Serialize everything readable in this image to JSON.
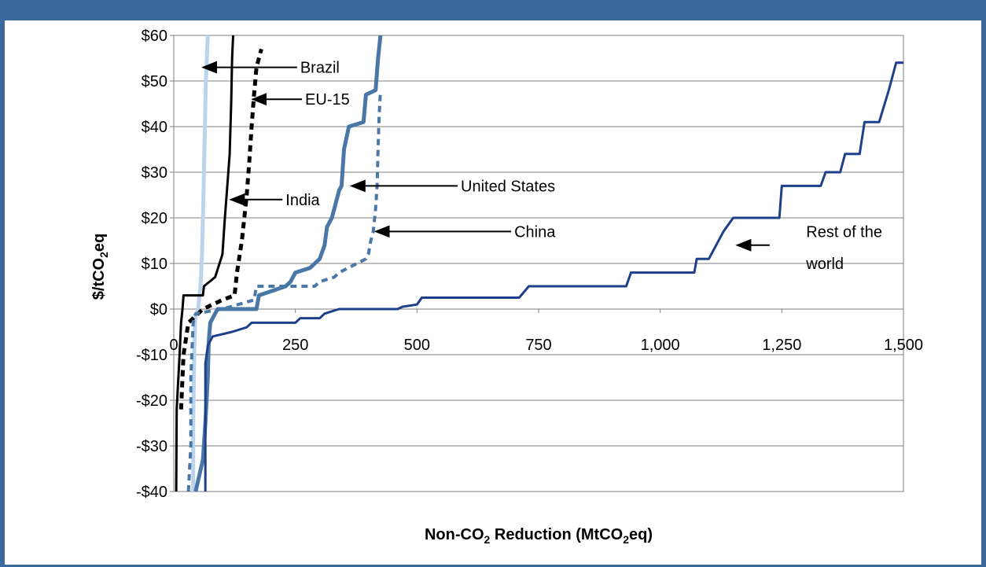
{
  "colors": {
    "frame": "#3b679a",
    "brazil": "#bcd3ec",
    "india": "#000000",
    "eu15": "#000000",
    "united_states": "#4a78a6",
    "china": "#4a78a6",
    "rest_of_world": "#1e3f8a"
  },
  "chart_data": {
    "type": "line",
    "xlabel": {
      "pre": "Non-CO",
      "sub": "2",
      "post": " Reduction (MtCO",
      "sub2": "2",
      "post2": "eq)"
    },
    "ylabel": {
      "pre": "$/tCO",
      "sub": "2",
      "post": "eq"
    },
    "xlim": [
      0,
      1500
    ],
    "ylim": [
      -40,
      60
    ],
    "x_ticks": [
      {
        "value": 0,
        "label": "0"
      },
      {
        "value": 250,
        "label": "250"
      },
      {
        "value": 500,
        "label": "500"
      },
      {
        "value": 750,
        "label": "750"
      },
      {
        "value": 1000,
        "label": "1,000"
      },
      {
        "value": 1250,
        "label": "1,250"
      },
      {
        "value": 1500,
        "label": "1,500"
      }
    ],
    "y_ticks": [
      {
        "value": 60,
        "label": "$60"
      },
      {
        "value": 50,
        "label": "$50"
      },
      {
        "value": 40,
        "label": "$40"
      },
      {
        "value": 30,
        "label": "$30"
      },
      {
        "value": 20,
        "label": "$20"
      },
      {
        "value": 10,
        "label": "$10"
      },
      {
        "value": 0,
        "label": "$0"
      },
      {
        "value": -10,
        "label": "-$10"
      },
      {
        "value": -20,
        "label": "-$20"
      },
      {
        "value": -30,
        "label": "-$30"
      },
      {
        "value": -40,
        "label": "-$40"
      }
    ],
    "grid": "horizontal",
    "series": [
      {
        "name": "Brazil",
        "style": "solid",
        "color_key": "brazil",
        "points": [
          [
            40,
            -40
          ],
          [
            40,
            -25
          ],
          [
            42,
            -10
          ],
          [
            44,
            -2
          ],
          [
            50,
            0
          ],
          [
            55,
            5
          ],
          [
            58,
            12
          ],
          [
            60,
            20
          ],
          [
            62,
            30
          ],
          [
            64,
            40
          ],
          [
            66,
            50
          ],
          [
            70,
            60
          ]
        ]
      },
      {
        "name": "India",
        "style": "solid",
        "color_key": "india",
        "points": [
          [
            5,
            -40
          ],
          [
            6,
            -22
          ],
          [
            12,
            -10
          ],
          [
            15,
            -3
          ],
          [
            18,
            0
          ],
          [
            20,
            3
          ],
          [
            60,
            3
          ],
          [
            62,
            5
          ],
          [
            85,
            7
          ],
          [
            100,
            12
          ],
          [
            105,
            20
          ],
          [
            110,
            27
          ],
          [
            115,
            34
          ],
          [
            118,
            45
          ],
          [
            120,
            55
          ],
          [
            122,
            60
          ]
        ]
      },
      {
        "name": "EU-15",
        "style": "dashed",
        "color_key": "eu15",
        "points": [
          [
            15,
            -22
          ],
          [
            20,
            -10
          ],
          [
            30,
            -3
          ],
          [
            60,
            0
          ],
          [
            100,
            2
          ],
          [
            125,
            3
          ],
          [
            130,
            8
          ],
          [
            140,
            15
          ],
          [
            150,
            25
          ],
          [
            155,
            32
          ],
          [
            160,
            40
          ],
          [
            165,
            47
          ],
          [
            170,
            53
          ],
          [
            180,
            57
          ]
        ]
      },
      {
        "name": "United States",
        "style": "solid",
        "color_key": "united_states",
        "points": [
          [
            45,
            -40
          ],
          [
            60,
            -33
          ],
          [
            65,
            -25
          ],
          [
            70,
            -15
          ],
          [
            72,
            -7
          ],
          [
            75,
            -3
          ],
          [
            90,
            0
          ],
          [
            170,
            0
          ],
          [
            175,
            3
          ],
          [
            230,
            5
          ],
          [
            240,
            6
          ],
          [
            250,
            8
          ],
          [
            280,
            9
          ],
          [
            300,
            11
          ],
          [
            310,
            14
          ],
          [
            315,
            18
          ],
          [
            325,
            20
          ],
          [
            340,
            26
          ],
          [
            345,
            27
          ],
          [
            350,
            35
          ],
          [
            360,
            40
          ],
          [
            390,
            41
          ],
          [
            395,
            47
          ],
          [
            415,
            48
          ],
          [
            420,
            55
          ],
          [
            425,
            60
          ]
        ]
      },
      {
        "name": "China",
        "style": "dashed",
        "color_key": "china",
        "points": [
          [
            30,
            -40
          ],
          [
            35,
            -30
          ],
          [
            35,
            -15
          ],
          [
            40,
            -3
          ],
          [
            45,
            -1
          ],
          [
            100,
            0
          ],
          [
            165,
            2
          ],
          [
            170,
            5
          ],
          [
            290,
            5
          ],
          [
            300,
            6
          ],
          [
            330,
            7
          ],
          [
            340,
            8
          ],
          [
            395,
            11
          ],
          [
            400,
            12
          ],
          [
            405,
            15
          ],
          [
            410,
            17
          ],
          [
            415,
            22
          ],
          [
            418,
            27
          ],
          [
            420,
            35
          ],
          [
            422,
            42
          ],
          [
            425,
            48
          ]
        ]
      },
      {
        "name": "Rest of the world",
        "style": "solid",
        "color_key": "rest_of_world",
        "points": [
          [
            65,
            -40
          ],
          [
            65,
            -12
          ],
          [
            70,
            -8
          ],
          [
            80,
            -6
          ],
          [
            120,
            -5
          ],
          [
            150,
            -4
          ],
          [
            160,
            -3
          ],
          [
            250,
            -3
          ],
          [
            260,
            -2
          ],
          [
            300,
            -2
          ],
          [
            310,
            -1
          ],
          [
            340,
            0
          ],
          [
            460,
            0
          ],
          [
            470,
            0.5
          ],
          [
            500,
            1
          ],
          [
            510,
            2.5
          ],
          [
            710,
            2.5
          ],
          [
            730,
            5
          ],
          [
            930,
            5
          ],
          [
            940,
            8
          ],
          [
            1070,
            8
          ],
          [
            1075,
            11
          ],
          [
            1100,
            11
          ],
          [
            1130,
            17
          ],
          [
            1150,
            20
          ],
          [
            1245,
            20
          ],
          [
            1250,
            27
          ],
          [
            1330,
            27
          ],
          [
            1340,
            30
          ],
          [
            1370,
            30
          ],
          [
            1380,
            34
          ],
          [
            1410,
            34
          ],
          [
            1420,
            41
          ],
          [
            1450,
            41
          ],
          [
            1470,
            48
          ],
          [
            1485,
            54
          ],
          [
            1500,
            54
          ]
        ]
      }
    ],
    "annotations": [
      {
        "text": "Brazil",
        "value": [
          260,
          53
        ],
        "arrow_to": [
          60,
          53
        ]
      },
      {
        "text": "EU-15",
        "value": [
          270,
          46
        ],
        "arrow_to": [
          162,
          46
        ]
      },
      {
        "text": "United States",
        "value": [
          590,
          27
        ],
        "arrow_to": [
          365,
          27
        ]
      },
      {
        "text": "India",
        "value": [
          230,
          24
        ],
        "arrow_to": [
          117,
          24
        ]
      },
      {
        "text": "China",
        "value": [
          700,
          17
        ],
        "arrow_to": [
          415,
          17
        ]
      },
      {
        "text": "Rest of the",
        "value": [
          1300,
          17
        ]
      },
      {
        "text": "world",
        "value": [
          1300,
          10
        ],
        "arrow_to": [
          1158,
          14
        ],
        "arrow_from": [
          1225,
          14
        ]
      }
    ]
  }
}
